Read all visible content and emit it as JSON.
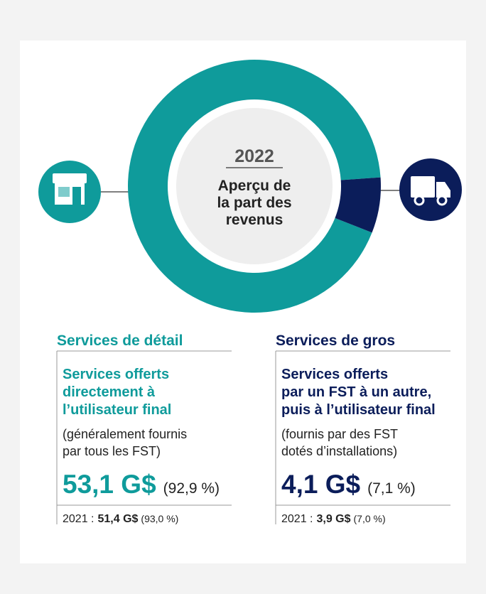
{
  "chart_data": {
    "type": "donut",
    "title": "2022",
    "subtitle_lines": [
      "Aperçu de",
      "la part des",
      "revenus"
    ],
    "categories": [
      "Services de détail",
      "Services de gros"
    ],
    "values": [
      92.9,
      7.1
    ],
    "value_labels": [
      "(92,9 %)",
      "(7,1 %)"
    ],
    "colors": [
      "#0f9b9b",
      "#0b1d5a"
    ],
    "panels": [
      {
        "description_lines": [
          "Services offerts",
          "directement à",
          "l’utilisateur final"
        ],
        "note_lines": [
          "(généralement fournis",
          "par tous les FST)"
        ],
        "revenue": "53,1 G$",
        "prior_year": "2021 :",
        "prior_revenue": "51,4 G$",
        "prior_share": "(93,0 %)"
      },
      {
        "description_lines": [
          "Services offerts",
          "par un FST à un autre,",
          "puis à l’utilisateur final"
        ],
        "note_lines": [
          "(fournis par des FST",
          "dotés d’installations)"
        ],
        "revenue": "4,1 G$",
        "prior_year": "2021 :",
        "prior_revenue": "3,9 G$",
        "prior_share": "(7,0 %)"
      }
    ]
  }
}
